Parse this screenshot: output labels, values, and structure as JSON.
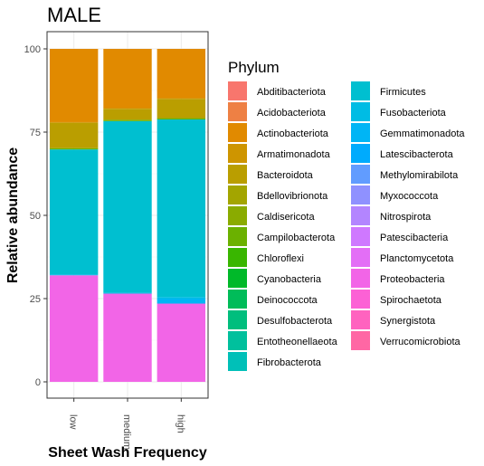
{
  "chart_data": {
    "type": "bar",
    "stacked": true,
    "title": "MALE",
    "xlabel": "Sheet Wash Frequency",
    "ylabel": "Relative abundance",
    "categories": [
      "low",
      "medium",
      "high"
    ],
    "ylim": [
      0,
      100
    ],
    "yticks": [
      0,
      25,
      50,
      75,
      100
    ],
    "grid": true,
    "legend": {
      "title": "Phylum",
      "position": "right",
      "columns": 2,
      "entries": [
        {
          "name": "Abditibacteriota",
          "color": "#F8766D"
        },
        {
          "name": "Acidobacteriota",
          "color": "#EE8044"
        },
        {
          "name": "Actinobacteriota",
          "color": "#E18A00"
        },
        {
          "name": "Armatimonadota",
          "color": "#CE9500"
        },
        {
          "name": "Bacteroidota",
          "color": "#BA9E00"
        },
        {
          "name": "Bdellovibrionota",
          "color": "#A3A500"
        },
        {
          "name": "Caldisericota",
          "color": "#8AAB00"
        },
        {
          "name": "Campilobacterota",
          "color": "#6BB100"
        },
        {
          "name": "Chloroflexi",
          "color": "#39B600"
        },
        {
          "name": "Cyanobacteria",
          "color": "#00B929"
        },
        {
          "name": "Deinococcota",
          "color": "#00BC59"
        },
        {
          "name": "Desulfobacterota",
          "color": "#00BE7D"
        },
        {
          "name": "Entotheonellaeota",
          "color": "#00C09D"
        },
        {
          "name": "Fibrobacterota",
          "color": "#00C0B8"
        },
        {
          "name": "Firmicutes",
          "color": "#00BFD0"
        },
        {
          "name": "Fusobacteriota",
          "color": "#00BCE4"
        },
        {
          "name": "Gemmatimonadota",
          "color": "#00B5F5"
        },
        {
          "name": "Latescibacterota",
          "color": "#00ABFD"
        },
        {
          "name": "Methylomirabilota",
          "color": "#619CFF"
        },
        {
          "name": "Myxococcota",
          "color": "#8F91FF"
        },
        {
          "name": "Nitrospirota",
          "color": "#B385FF"
        },
        {
          "name": "Patescibacteria",
          "color": "#CF78FF"
        },
        {
          "name": "Planctomycetota",
          "color": "#E36EF6"
        },
        {
          "name": "Proteobacteria",
          "color": "#F265E7"
        },
        {
          "name": "Spirochaetota",
          "color": "#FC61D5"
        },
        {
          "name": "Synergistota",
          "color": "#FF63BF"
        },
        {
          "name": "Verrucomicrobiota",
          "color": "#FF67A4"
        }
      ]
    },
    "series": [
      {
        "name": "Proteobacteria",
        "color": "#F265E7",
        "values": [
          32.0,
          26.5,
          23.5
        ]
      },
      {
        "name": "Gemmatimonadota",
        "color": "#00B5F5",
        "values": [
          0.0,
          0.0,
          1.5
        ]
      },
      {
        "name": "Fusobacteriota",
        "color": "#00BCE4",
        "values": [
          0.3,
          0.3,
          0.5
        ]
      },
      {
        "name": "Firmicutes",
        "color": "#00BFD0",
        "values": [
          37.5,
          51.5,
          53.3
        ]
      },
      {
        "name": "Campilobacterota",
        "color": "#6BB100",
        "values": [
          0.4,
          0.4,
          0.4
        ]
      },
      {
        "name": "Bacteroidota",
        "color": "#BA9E00",
        "values": [
          7.6,
          3.3,
          5.8
        ]
      },
      {
        "name": "Armatimonadota",
        "color": "#CE9500",
        "values": [
          0.2,
          0.2,
          0.2
        ]
      },
      {
        "name": "Actinobacteriota",
        "color": "#E18A00",
        "values": [
          22.0,
          17.8,
          14.8
        ]
      }
    ]
  }
}
